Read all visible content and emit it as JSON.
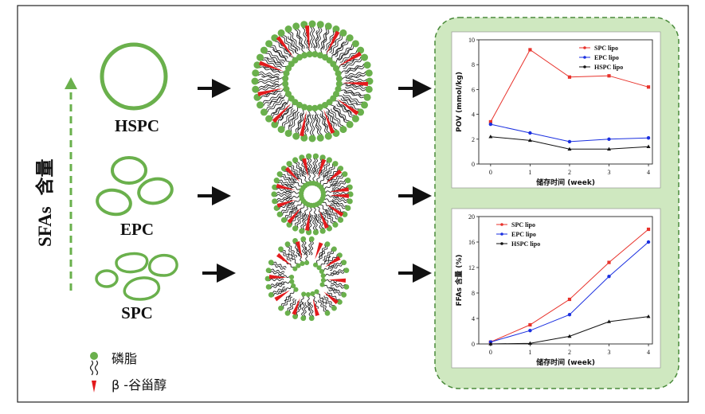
{
  "left_axis": {
    "label_latin": "SFAs",
    "label_cjk": "含量"
  },
  "vesicles": [
    {
      "label": "HSPC"
    },
    {
      "label": "EPC"
    },
    {
      "label": "SPC"
    }
  ],
  "legend": [
    {
      "icon": "phospholipid-icon",
      "label": "磷脂"
    },
    {
      "icon": "sitosterol-icon",
      "label": "β -谷甾醇"
    }
  ],
  "colors": {
    "green": "#6ab04c",
    "panel_bg": "#cfe8c0",
    "panel_border": "#4a8a3a",
    "red": "#e31a1c",
    "black": "#111111",
    "spc": "#e8322b",
    "epc": "#1a2fe0",
    "hspc": "#111111"
  },
  "chart_data": [
    {
      "type": "line",
      "title": "",
      "xlabel": "储存时间 (week)",
      "ylabel": "POV (mmol/kg)",
      "x": [
        0,
        1,
        2,
        3,
        4
      ],
      "xticks": [
        "0",
        "1",
        "2",
        "3",
        "4"
      ],
      "yticks": [
        "0",
        "2",
        "4",
        "6",
        "8",
        "10"
      ],
      "ylim": [
        0,
        10
      ],
      "legend_position": "top-right",
      "series": [
        {
          "name": "SPC lipo",
          "values": [
            3.4,
            9.2,
            7.0,
            7.1,
            6.2
          ]
        },
        {
          "name": "EPC lipo",
          "values": [
            3.2,
            2.5,
            1.8,
            2.0,
            2.1
          ]
        },
        {
          "name": "HSPC lipo",
          "values": [
            2.2,
            1.9,
            1.2,
            1.2,
            1.4
          ]
        }
      ]
    },
    {
      "type": "line",
      "title": "",
      "xlabel": "储存时间 (week)",
      "ylabel": "FFAs 含量 (%)",
      "x": [
        0,
        1,
        2,
        3,
        4
      ],
      "xticks": [
        "0",
        "1",
        "2",
        "3",
        "4"
      ],
      "yticks": [
        "0",
        "4",
        "8",
        "12",
        "16",
        "20"
      ],
      "ylim": [
        0,
        20
      ],
      "legend_position": "top-left",
      "series": [
        {
          "name": "SPC lipo",
          "values": [
            0.3,
            3.0,
            7.0,
            12.8,
            18.0
          ]
        },
        {
          "name": "EPC lipo",
          "values": [
            0.3,
            2.1,
            4.6,
            10.6,
            16.0
          ]
        },
        {
          "name": "HSPC lipo",
          "values": [
            0.0,
            0.1,
            1.2,
            3.5,
            4.3
          ]
        }
      ]
    }
  ]
}
